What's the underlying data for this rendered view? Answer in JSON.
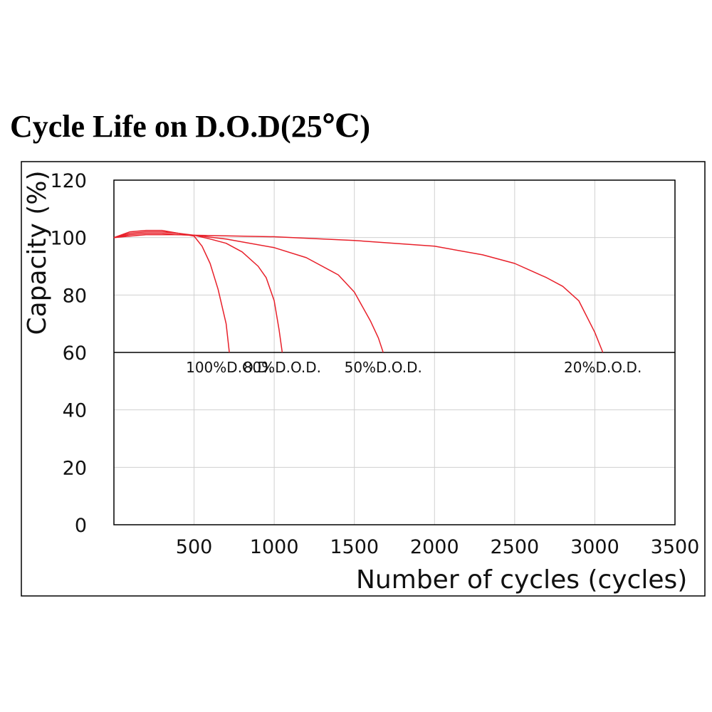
{
  "chart_data": {
    "type": "line",
    "title": "Cycle Life on D.O.D(25℃)",
    "xlabel": "Number of cycles (cycles)",
    "ylabel": "Capacity (%)",
    "xlim": [
      0,
      3500
    ],
    "ylim": [
      0,
      120
    ],
    "x_ticks": [
      500,
      1000,
      1500,
      2000,
      2500,
      3000,
      3500
    ],
    "y_ticks": [
      0,
      20,
      40,
      60,
      80,
      100,
      120
    ],
    "grid": true,
    "threshold_line": 60,
    "colors": {
      "series": "#e8202a",
      "grid": "#d0d0d0",
      "axis": "#000000"
    },
    "series": [
      {
        "name": "100%D.O.D.",
        "x": [
          0,
          100,
          200,
          300,
          400,
          500,
          550,
          600,
          650,
          700,
          720
        ],
        "y": [
          100,
          102,
          102.5,
          102.5,
          101.5,
          100.5,
          97,
          91,
          82,
          70,
          60
        ]
      },
      {
        "name": "80%D.O.D.",
        "x": [
          0,
          100,
          200,
          300,
          400,
          500,
          600,
          700,
          800,
          900,
          950,
          1000,
          1030,
          1050
        ],
        "y": [
          100,
          101.5,
          102,
          102,
          101.5,
          100.8,
          99.5,
          98,
          95,
          90,
          86,
          78,
          68,
          60
        ]
      },
      {
        "name": "50%D.O.D.",
        "x": [
          0,
          100,
          200,
          300,
          400,
          500,
          700,
          1000,
          1200,
          1400,
          1500,
          1600,
          1650,
          1680
        ],
        "y": [
          100,
          101,
          101.5,
          101.5,
          101,
          100.8,
          99.5,
          96.5,
          93,
          87,
          81,
          71,
          65,
          60
        ]
      },
      {
        "name": "20%D.O.D.",
        "x": [
          0,
          100,
          200,
          300,
          400,
          500,
          1000,
          1500,
          2000,
          2300,
          2500,
          2700,
          2800,
          2900,
          3000,
          3050
        ],
        "y": [
          100,
          100.5,
          101,
          101,
          101,
          100.8,
          100.3,
          99,
          97,
          94,
          91,
          86,
          83,
          78,
          67,
          60
        ]
      }
    ]
  }
}
